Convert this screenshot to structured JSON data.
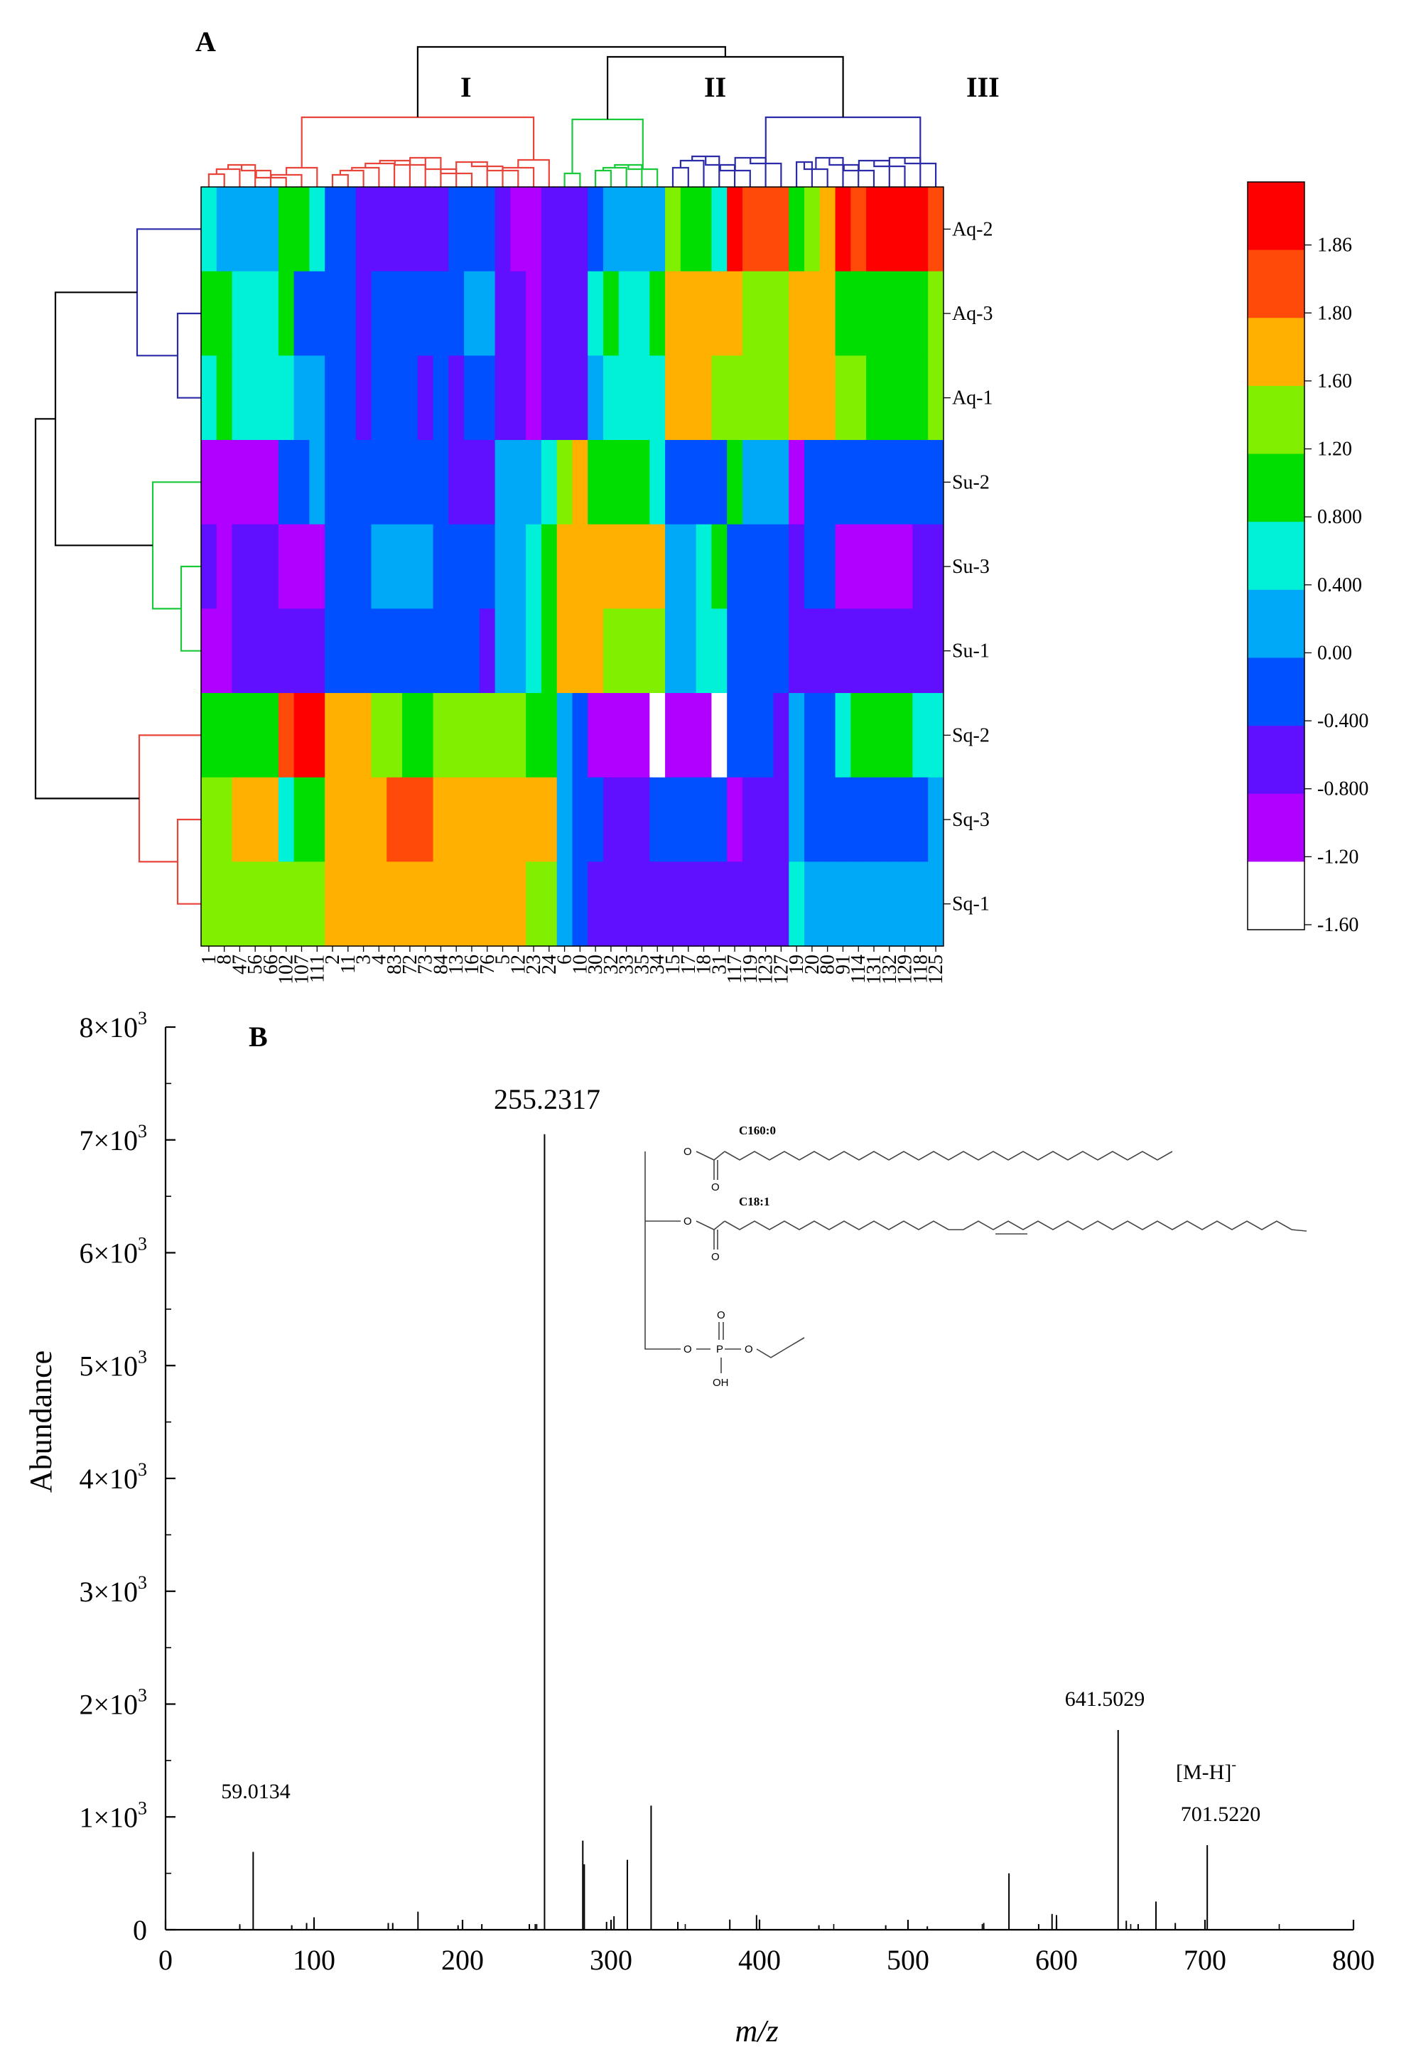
{
  "panel_a": {
    "letter": "A",
    "cluster_labels": [
      "I",
      "II",
      "III"
    ],
    "colors": {
      "dendro_black": "#000000",
      "cluster_I": "#e8443a",
      "cluster_II": "#19c93a",
      "cluster_III": "#2b2ba8"
    }
  },
  "panel_b": {
    "letter": "B",
    "peak_labels": {
      "p255": "255.2317",
      "p641": "641.5029",
      "mh": "[M-H]",
      "mh_sup": "-",
      "p701": "701.5220",
      "p59": "59.0134"
    },
    "structure": {
      "chain1": "C160:0",
      "chain2": "C18:1",
      "o": "O",
      "p": "P",
      "oh": "OH"
    }
  },
  "chart_data": [
    {
      "type": "heatmap",
      "title": "",
      "rows": [
        "Aq-2",
        "Aq-3",
        "Aq-1",
        "Su-2",
        "Su-3",
        "Su-1",
        "Sq-2",
        "Sq-3",
        "Sq-1"
      ],
      "columns": [
        "1",
        "8",
        "47",
        "56",
        "66",
        "102",
        "107",
        "111",
        "2",
        "11",
        "3",
        "4",
        "83",
        "72",
        "73",
        "84",
        "13",
        "16",
        "76",
        "5",
        "12",
        "23",
        "24",
        "6",
        "10",
        "30",
        "32",
        "33",
        "35",
        "34",
        "15",
        "17",
        "18",
        "31",
        "117",
        "119",
        "123",
        "127",
        "19",
        "20",
        "80",
        "91",
        "114",
        "131",
        "132",
        "129",
        "118",
        "125"
      ],
      "legend": {
        "tick_labels": [
          "1.86",
          "1.80",
          "1.60",
          "1.20",
          "0.800",
          "0.400",
          "0.00",
          "-0.400",
          "-0.800",
          "-1.20",
          "-1.60"
        ],
        "colors": [
          "#ff0000",
          "#ff4a0a",
          "#ffb000",
          "#80f000",
          "#00dd00",
          "#00f0d8",
          "#00a8f8",
          "#0050ff",
          "#6010ff",
          "#b000ff",
          "#ffffff"
        ]
      },
      "values": [
        [
          5,
          6,
          6,
          6,
          6,
          4,
          4,
          5,
          7,
          7,
          8,
          8,
          8,
          8,
          8,
          8,
          7,
          7,
          7,
          8,
          9,
          9,
          8,
          8,
          8,
          7,
          6,
          6,
          6,
          6,
          3,
          4,
          4,
          5,
          0,
          1,
          1,
          1,
          4,
          3,
          2,
          0,
          1,
          0,
          0,
          0,
          0,
          1
        ],
        [
          4,
          4,
          5,
          5,
          5,
          4,
          7,
          7,
          7,
          7,
          8,
          7,
          7,
          7,
          7,
          7,
          7,
          6,
          6,
          8,
          8,
          9,
          8,
          8,
          8,
          5,
          4,
          5,
          5,
          4,
          2,
          2,
          2,
          2,
          2,
          3,
          3,
          3,
          2,
          2,
          2,
          4,
          4,
          4,
          4,
          4,
          4,
          3
        ],
        [
          5,
          4,
          5,
          5,
          5,
          5,
          6,
          6,
          7,
          7,
          8,
          7,
          7,
          7,
          8,
          7,
          8,
          7,
          7,
          8,
          8,
          9,
          8,
          8,
          8,
          6,
          5,
          5,
          5,
          5,
          2,
          2,
          2,
          3,
          3,
          3,
          3,
          3,
          2,
          2,
          2,
          3,
          3,
          4,
          4,
          4,
          4,
          3
        ],
        [
          9,
          9,
          9,
          9,
          9,
          7,
          7,
          6,
          7,
          7,
          7,
          7,
          7,
          7,
          7,
          7,
          8,
          8,
          8,
          6,
          6,
          6,
          5,
          3,
          2,
          4,
          4,
          4,
          4,
          5,
          7,
          7,
          7,
          7,
          4,
          6,
          6,
          6,
          9,
          7,
          7,
          7,
          7,
          7,
          7,
          7,
          7,
          7
        ],
        [
          8,
          9,
          8,
          8,
          8,
          9,
          9,
          9,
          7,
          7,
          7,
          6,
          6,
          6,
          6,
          7,
          7,
          7,
          7,
          6,
          6,
          5,
          4,
          2,
          2,
          2,
          2,
          2,
          2,
          2,
          6,
          6,
          5,
          4,
          7,
          7,
          7,
          7,
          8,
          7,
          7,
          9,
          9,
          9,
          9,
          9,
          8,
          8
        ],
        [
          9,
          9,
          8,
          8,
          8,
          8,
          8,
          8,
          7,
          7,
          7,
          7,
          7,
          7,
          7,
          7,
          7,
          7,
          8,
          6,
          6,
          5,
          4,
          2,
          2,
          2,
          3,
          3,
          3,
          3,
          6,
          6,
          5,
          5,
          7,
          7,
          7,
          7,
          8,
          8,
          8,
          8,
          8,
          8,
          8,
          8,
          8,
          8
        ],
        [
          4,
          4,
          4,
          4,
          4,
          1,
          0,
          0,
          2,
          2,
          2,
          3,
          3,
          4,
          4,
          3,
          3,
          3,
          3,
          3,
          3,
          4,
          4,
          6,
          7,
          9,
          9,
          9,
          9,
          10,
          9,
          9,
          9,
          10,
          7,
          7,
          7,
          8,
          6,
          7,
          7,
          5,
          4,
          4,
          4,
          4,
          5,
          5
        ],
        [
          3,
          3,
          2,
          2,
          2,
          5,
          4,
          4,
          2,
          2,
          2,
          2,
          1,
          1,
          1,
          2,
          2,
          2,
          2,
          2,
          2,
          2,
          2,
          6,
          7,
          7,
          8,
          8,
          8,
          7,
          7,
          7,
          7,
          7,
          9,
          8,
          8,
          8,
          6,
          7,
          7,
          7,
          7,
          7,
          7,
          7,
          7,
          6
        ],
        [
          3,
          3,
          3,
          3,
          3,
          3,
          3,
          3,
          2,
          2,
          2,
          2,
          2,
          2,
          2,
          2,
          2,
          2,
          2,
          2,
          2,
          3,
          3,
          6,
          7,
          8,
          8,
          8,
          8,
          8,
          8,
          8,
          8,
          8,
          8,
          8,
          8,
          8,
          5,
          6,
          6,
          6,
          6,
          6,
          6,
          6,
          6,
          6
        ]
      ]
    },
    {
      "type": "bar",
      "title": "",
      "xlabel": "m/z",
      "ylabel": "Abundance",
      "xlim": [
        0,
        800
      ],
      "ylim": [
        0,
        8000
      ],
      "x_ticks": [
        "0",
        "100",
        "200",
        "300",
        "400",
        "500",
        "600",
        "700",
        "800"
      ],
      "y_ticks": [
        "0",
        "1×10",
        "2×10",
        "3×10",
        "4×10",
        "5×10",
        "6×10",
        "7×10",
        "8×10"
      ],
      "y_tick_exponent": "3",
      "peaks": [
        {
          "mz": 50,
          "abundance": 40
        },
        {
          "mz": 59.0134,
          "abundance": 690
        },
        {
          "mz": 85,
          "abundance": 40
        },
        {
          "mz": 95,
          "abundance": 60
        },
        {
          "mz": 100,
          "abundance": 110
        },
        {
          "mz": 150,
          "abundance": 60
        },
        {
          "mz": 153,
          "abundance": 60
        },
        {
          "mz": 170,
          "abundance": 160
        },
        {
          "mz": 197,
          "abundance": 40
        },
        {
          "mz": 213,
          "abundance": 50
        },
        {
          "mz": 245,
          "abundance": 50
        },
        {
          "mz": 249,
          "abundance": 50
        },
        {
          "mz": 255.2317,
          "abundance": 7050
        },
        {
          "mz": 281,
          "abundance": 790
        },
        {
          "mz": 282,
          "abundance": 580
        },
        {
          "mz": 297,
          "abundance": 70
        },
        {
          "mz": 302,
          "abundance": 120
        },
        {
          "mz": 311,
          "abundance": 620
        },
        {
          "mz": 327,
          "abundance": 1100
        },
        {
          "mz": 345,
          "abundance": 70
        },
        {
          "mz": 380,
          "abundance": 90
        },
        {
          "mz": 398,
          "abundance": 130
        },
        {
          "mz": 400,
          "abundance": 90
        },
        {
          "mz": 440,
          "abundance": 40
        },
        {
          "mz": 485,
          "abundance": 40
        },
        {
          "mz": 513,
          "abundance": 30
        },
        {
          "mz": 551,
          "abundance": 60
        },
        {
          "mz": 568,
          "abundance": 500
        },
        {
          "mz": 588,
          "abundance": 50
        },
        {
          "mz": 597,
          "abundance": 140
        },
        {
          "mz": 600,
          "abundance": 130
        },
        {
          "mz": 641.5029,
          "abundance": 1770
        },
        {
          "mz": 647,
          "abundance": 80
        },
        {
          "mz": 655,
          "abundance": 50
        },
        {
          "mz": 667,
          "abundance": 250
        },
        {
          "mz": 680,
          "abundance": 60
        },
        {
          "mz": 701.522,
          "abundance": 750
        }
      ]
    }
  ]
}
